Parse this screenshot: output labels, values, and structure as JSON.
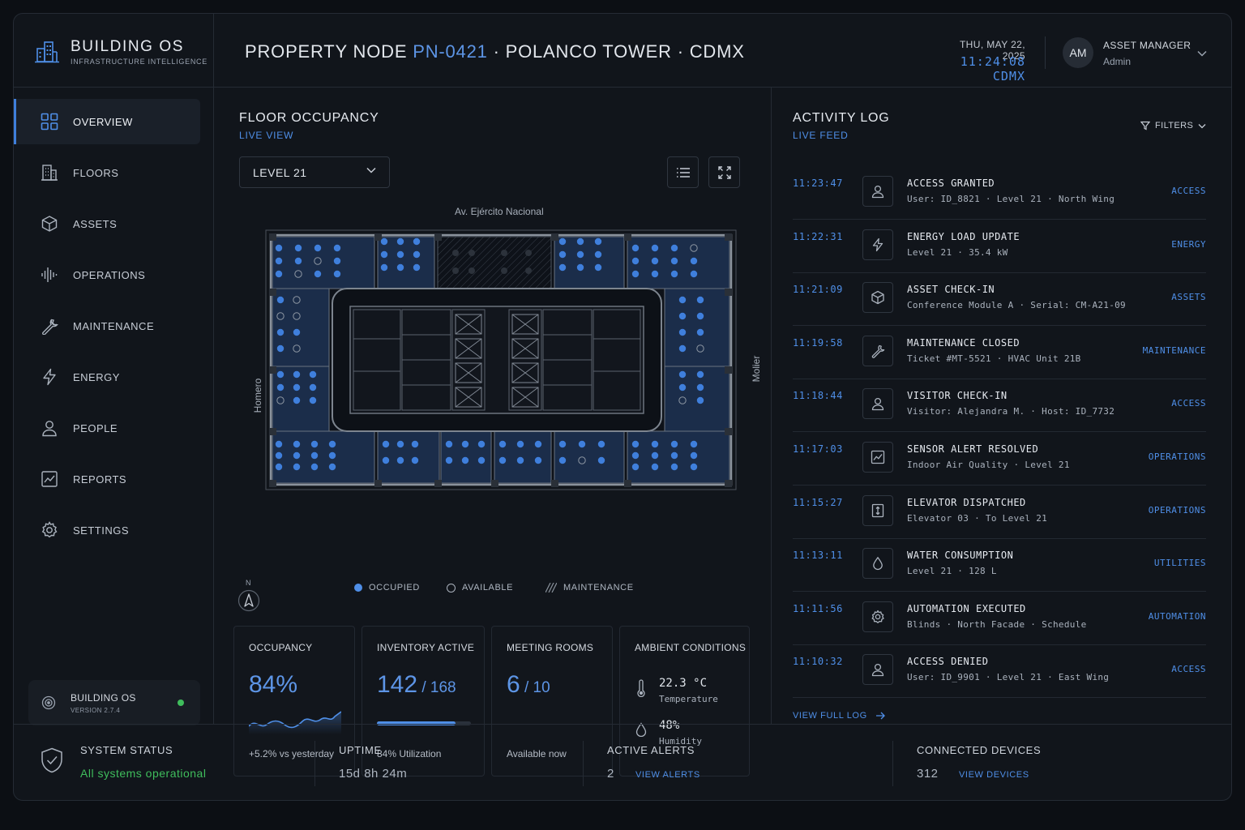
{
  "brand": {
    "name": "BUILDING OS",
    "tagline": "INFRASTRUCTURE INTELLIGENCE"
  },
  "header": {
    "title_prefix": "PROPERTY NODE ",
    "node_id": "PN-0421",
    "title_suffix": " · POLANCO TOWER · CDMX",
    "date": "THU, MAY 22, 2025",
    "time": "11:24:08  CDMX",
    "user_initials": "AM",
    "user_role": "ASSET MANAGER",
    "user_name": "Admin"
  },
  "sidebar": {
    "items": [
      {
        "label": "OVERVIEW",
        "icon": "grid-icon",
        "active": true
      },
      {
        "label": "FLOORS",
        "icon": "building-icon"
      },
      {
        "label": "ASSETS",
        "icon": "cube-icon"
      },
      {
        "label": "OPERATIONS",
        "icon": "waveform-icon"
      },
      {
        "label": "MAINTENANCE",
        "icon": "wrench-icon"
      },
      {
        "label": "ENERGY",
        "icon": "bolt-icon"
      },
      {
        "label": "PEOPLE",
        "icon": "person-icon"
      },
      {
        "label": "REPORTS",
        "icon": "chart-icon"
      },
      {
        "label": "SETTINGS",
        "icon": "gear-icon"
      }
    ],
    "version_card": {
      "name": "BUILDING OS",
      "version": "VERSION 2.7.4",
      "status_color": "#3fbd5c"
    }
  },
  "floor": {
    "title": "FLOOR OCCUPANCY",
    "subtitle": "LIVE VIEW",
    "selected_level": "LEVEL 21",
    "streets": {
      "north": "Av. Ejército Nacional",
      "west": "Homero",
      "east": "Molier"
    },
    "compass": "N",
    "legend": {
      "occupied": "OCCUPIED",
      "available": "AVAILABLE",
      "maintenance": "MAINTENANCE"
    }
  },
  "stats": {
    "occupancy": {
      "label": "OCCUPANCY",
      "value": "84%",
      "foot": "+5.2% vs yesterday"
    },
    "inventory": {
      "label": "INVENTORY ACTIVE",
      "value": "142",
      "total": "168",
      "fill_fraction": 0.84,
      "foot": "84% Utilization"
    },
    "meeting": {
      "label": "MEETING ROOMS",
      "value": "6",
      "total": "10",
      "foot": "Available now"
    },
    "ambient": {
      "label": "AMBIENT CONDITIONS",
      "temp": "22.3",
      "temp_unit": "°C",
      "temp_label": "Temperature",
      "humidity": "48",
      "humidity_unit": "%",
      "humidity_label": "Humidity"
    }
  },
  "activity": {
    "title": "ACTIVITY LOG",
    "subtitle": "LIVE FEED",
    "filters_label": "FILTERS",
    "view_full": "VIEW FULL LOG",
    "entries": [
      {
        "time": "11:23:47",
        "icon": "person-icon",
        "title": "ACCESS GRANTED",
        "detail": "User: ID_8821 · Level 21 · North Wing",
        "tag": "ACCESS"
      },
      {
        "time": "11:22:31",
        "icon": "bolt-icon",
        "title": "ENERGY LOAD UPDATE",
        "detail": "Level 21 · 35.4 kW",
        "tag": "ENERGY"
      },
      {
        "time": "11:21:09",
        "icon": "cube-icon",
        "title": "ASSET CHECK-IN",
        "detail": "Conference Module A · Serial: CM-A21-09",
        "tag": "ASSETS"
      },
      {
        "time": "11:19:58",
        "icon": "wrench-icon",
        "title": "MAINTENANCE CLOSED",
        "detail": "Ticket #MT-5521 · HVAC Unit 21B",
        "tag": "MAINTENANCE"
      },
      {
        "time": "11:18:44",
        "icon": "person-icon",
        "title": "VISITOR CHECK-IN",
        "detail": "Visitor: Alejandra M. · Host: ID_7732",
        "tag": "ACCESS"
      },
      {
        "time": "11:17:03",
        "icon": "chart-icon",
        "title": "SENSOR ALERT RESOLVED",
        "detail": "Indoor Air Quality · Level 21",
        "tag": "OPERATIONS"
      },
      {
        "time": "11:15:27",
        "icon": "elevator-icon",
        "title": "ELEVATOR DISPATCHED",
        "detail": "Elevator 03 · To Level 21",
        "tag": "OPERATIONS"
      },
      {
        "time": "11:13:11",
        "icon": "droplet-icon",
        "title": "WATER CONSUMPTION",
        "detail": "Level 21 · 128 L",
        "tag": "UTILITIES"
      },
      {
        "time": "11:11:56",
        "icon": "gear-icon",
        "title": "AUTOMATION EXECUTED",
        "detail": "Blinds · North Facade · Schedule",
        "tag": "AUTOMATION"
      },
      {
        "time": "11:10:32",
        "icon": "person-icon",
        "title": "ACCESS DENIED",
        "detail": "User: ID_9901 · Level 21 · East Wing",
        "tag": "ACCESS"
      }
    ]
  },
  "footer": {
    "system_status": {
      "label": "SYSTEM STATUS",
      "value": "All systems operational",
      "color": "#3fbd5c"
    },
    "uptime": {
      "label": "UPTIME",
      "value": "15d  8h  24m"
    },
    "alerts": {
      "label": "ACTIVE ALERTS",
      "value": "2",
      "link": "VIEW ALERTS"
    },
    "devices": {
      "label": "CONNECTED DEVICES",
      "value": "312",
      "link": "VIEW DEVICES"
    }
  },
  "colors": {
    "accent": "#4f8fe8",
    "background": "#11151b",
    "success": "#3fbd5c"
  }
}
